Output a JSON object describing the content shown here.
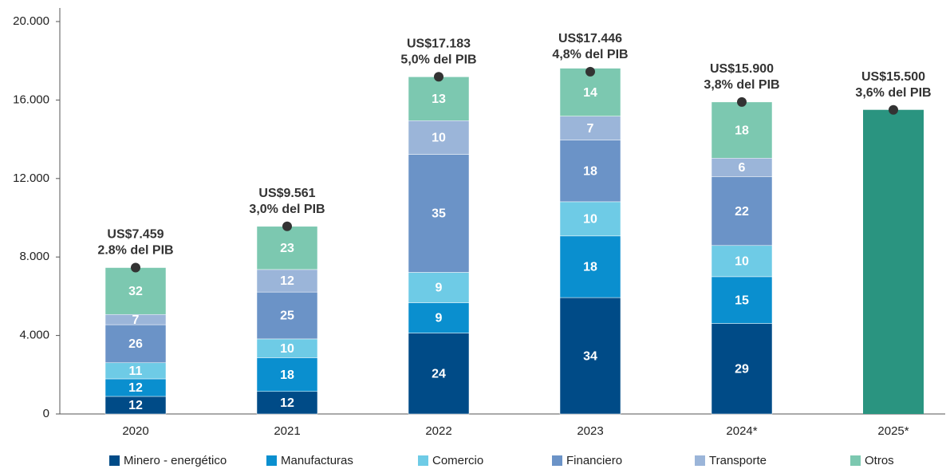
{
  "chart_data": {
    "type": "stacked_bar",
    "categories": [
      "2020",
      "2021",
      "2022",
      "2023",
      "2024*",
      "2025*"
    ],
    "series": [
      {
        "name": "Minero - energético",
        "color": "#004b87",
        "values": [
          12,
          12,
          24,
          34,
          29,
          null
        ]
      },
      {
        "name": "Manufacturas",
        "color": "#0a8fcf",
        "values": [
          12,
          18,
          9,
          18,
          15,
          null
        ]
      },
      {
        "name": "Comercio",
        "color": "#6ecbe6",
        "values": [
          11,
          10,
          9,
          10,
          10,
          null
        ]
      },
      {
        "name": "Financiero",
        "color": "#6b93c7",
        "values": [
          26,
          25,
          35,
          18,
          22,
          null
        ]
      },
      {
        "name": "Transporte",
        "color": "#9bb5d9",
        "values": [
          7,
          12,
          10,
          7,
          6,
          null
        ]
      },
      {
        "name": "Otros",
        "color": "#7cc8b0",
        "values": [
          32,
          23,
          13,
          14,
          18,
          null
        ]
      }
    ],
    "totals": {
      "color": "#2a9480",
      "values": [
        7459,
        9561,
        17183,
        17446,
        15900,
        15500
      ],
      "value_labels": [
        "US$7.459",
        "US$9.561",
        "US$17.183",
        "US$17.446",
        "US$15.900",
        "US$15.500"
      ],
      "gdp_share": [
        2.8,
        3.0,
        5.0,
        4.8,
        3.8,
        3.6
      ],
      "gdp_share_labels": [
        "2.8% del PIB",
        "3,0% del PIB",
        "5,0% del PIB",
        "4,8% del PIB",
        "3,8% del PIB",
        "3,6% del PIB"
      ]
    },
    "ylim": [
      0,
      20000
    ],
    "yticks": [
      0,
      {
        "value": 4000,
        "label": "4.000"
      },
      {
        "value": 8000,
        "label": "8.000"
      },
      {
        "value": 12000,
        "label": "12.000"
      },
      {
        "value": 16000,
        "label": "16.000"
      },
      {
        "value": 20000,
        "label": "20.000"
      }
    ]
  }
}
